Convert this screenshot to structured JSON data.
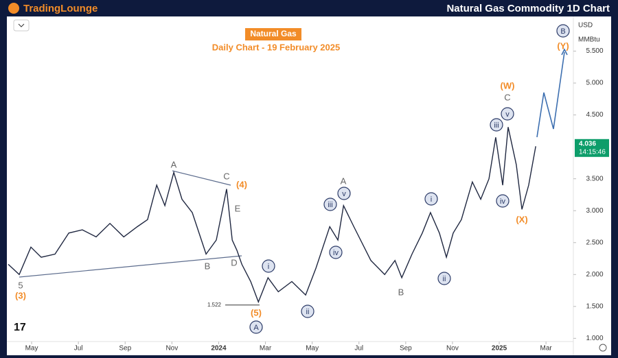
{
  "header": {
    "brand": "TradingLounge",
    "title": "Natural Gas Commodity 1D Chart"
  },
  "chart_data": {
    "type": "line",
    "title": "Natural Gas",
    "subtitle": "Daily Chart - 19 February 2025",
    "currency": "USD",
    "unit": "MMBtu",
    "x": [
      3.0,
      3.47,
      3.97,
      4.41,
      5.0,
      5.59,
      6.17,
      6.76,
      7.35,
      7.94,
      8.52,
      8.96,
      9.35,
      9.7,
      10.08,
      10.43,
      10.87,
      11.46,
      11.9,
      12.34,
      12.58,
      12.78,
      12.99,
      13.37,
      13.7,
      14.11,
      14.55,
      15.13,
      15.72,
      16.16,
      16.75,
      17.1,
      17.34,
      17.78,
      18.51,
      19.1,
      19.54,
      19.83,
      20.27,
      20.71,
      21.06,
      21.44,
      21.74,
      22.03,
      22.38,
      22.85,
      23.21,
      23.56,
      23.85,
      24.15,
      24.38,
      24.73,
      24.97,
      25.26,
      25.56
    ],
    "series": [
      {
        "name": "Natural Gas",
        "color": "#1f2740",
        "values": [
          2.16,
          2.0,
          2.43,
          2.27,
          2.32,
          2.65,
          2.7,
          2.59,
          2.8,
          2.59,
          2.75,
          2.86,
          3.4,
          3.08,
          3.6,
          3.18,
          2.97,
          2.32,
          2.54,
          3.34,
          2.54,
          2.38,
          2.16,
          1.89,
          1.57,
          1.95,
          1.73,
          1.89,
          1.68,
          2.1,
          2.75,
          2.54,
          3.08,
          2.75,
          2.22,
          2.0,
          2.22,
          1.95,
          2.32,
          2.65,
          2.97,
          2.65,
          2.27,
          2.65,
          2.86,
          3.45,
          3.18,
          3.5,
          4.15,
          3.4,
          4.31,
          3.72,
          3.02,
          3.4,
          4.01
        ]
      }
    ],
    "xlim": [
      3.0,
      27.2
    ],
    "xticks": [
      {
        "value": 4,
        "label": "May"
      },
      {
        "value": 6,
        "label": "Jul"
      },
      {
        "value": 8,
        "label": "Sep"
      },
      {
        "value": 10,
        "label": "Nov"
      },
      {
        "value": 12,
        "label": "2024"
      },
      {
        "value": 14,
        "label": "Mar"
      },
      {
        "value": 16,
        "label": "May"
      },
      {
        "value": 18,
        "label": "Jul"
      },
      {
        "value": 20,
        "label": "Sep"
      },
      {
        "value": 22,
        "label": "Nov"
      },
      {
        "value": 24,
        "label": "2025"
      },
      {
        "value": 26,
        "label": "Mar"
      }
    ],
    "ylim": [
      0.95,
      6.0
    ],
    "yticks": [
      {
        "value": 1,
        "label": "1.000"
      },
      {
        "value": 1.5,
        "label": "1.500"
      },
      {
        "value": 2,
        "label": "2.000"
      },
      {
        "value": 2.5,
        "label": "2.500"
      },
      {
        "value": 3,
        "label": "3.000"
      },
      {
        "value": 3.5,
        "label": "3.500"
      },
      {
        "value": 4.5,
        "label": "4.500"
      },
      {
        "value": 5,
        "label": "5.000"
      },
      {
        "value": 5.5,
        "label": "5.500"
      }
    ],
    "low_marker": {
      "value": 1.522,
      "label": "1.522"
    },
    "last_price": {
      "value": 4.036,
      "label": "4.036"
    },
    "countdown": "14:15:46",
    "annotations": [
      {
        "text": "5",
        "kind": "gray"
      },
      {
        "text": "(3)",
        "kind": "orange"
      },
      {
        "text": "A",
        "kind": "gray"
      },
      {
        "text": "B",
        "kind": "gray"
      },
      {
        "text": "C",
        "kind": "gray"
      },
      {
        "text": "(4)",
        "kind": "orange"
      },
      {
        "text": "E",
        "kind": "gray"
      },
      {
        "text": "D",
        "kind": "gray"
      },
      {
        "text": "(5)",
        "kind": "orange"
      },
      {
        "text": "A",
        "kind": "circle"
      },
      {
        "text": "i",
        "kind": "circle"
      },
      {
        "text": "ii",
        "kind": "circle"
      },
      {
        "text": "iii",
        "kind": "circle"
      },
      {
        "text": "iv",
        "kind": "circle"
      },
      {
        "text": "v",
        "kind": "circle"
      },
      {
        "text": "A",
        "kind": "gray"
      },
      {
        "text": "B",
        "kind": "gray"
      },
      {
        "text": "i",
        "kind": "circle"
      },
      {
        "text": "ii",
        "kind": "circle"
      },
      {
        "text": "iii",
        "kind": "circle"
      },
      {
        "text": "iv",
        "kind": "circle"
      },
      {
        "text": "v",
        "kind": "circle"
      },
      {
        "text": "C",
        "kind": "gray"
      },
      {
        "text": "(W)",
        "kind": "orange"
      },
      {
        "text": "(X)",
        "kind": "orange"
      },
      {
        "text": "B",
        "kind": "circle"
      },
      {
        "text": "(Y)",
        "kind": "orange"
      }
    ]
  }
}
